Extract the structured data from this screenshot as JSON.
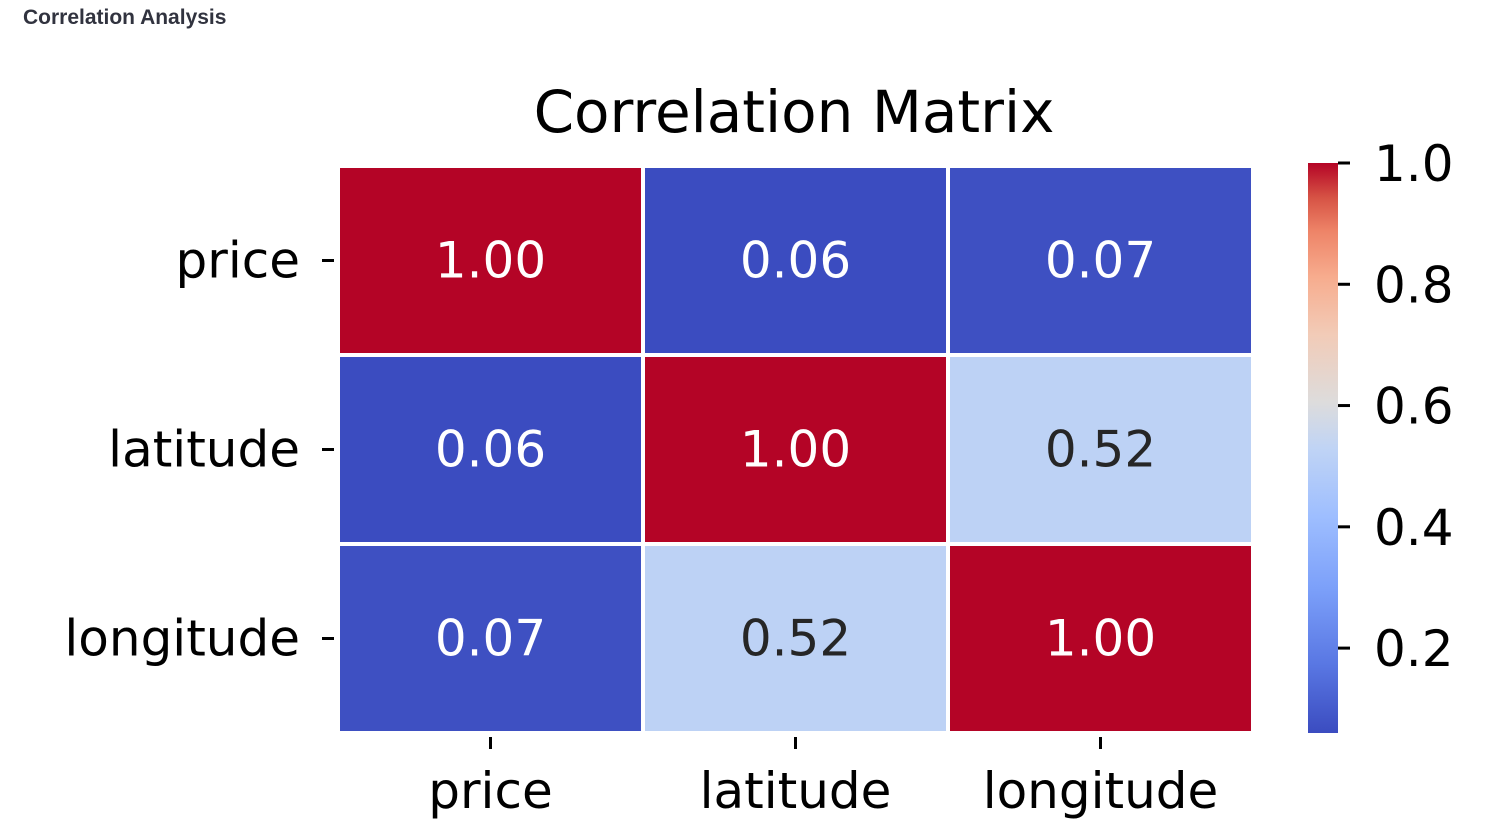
{
  "section": {
    "title": "Correlation Analysis"
  },
  "chart_data": {
    "type": "heatmap",
    "title": "Correlation Matrix",
    "xlabel": "",
    "ylabel": "",
    "rows": [
      "price",
      "latitude",
      "longitude"
    ],
    "columns": [
      "price",
      "latitude",
      "longitude"
    ],
    "values": [
      [
        1.0,
        0.06,
        0.07
      ],
      [
        0.06,
        1.0,
        0.52
      ],
      [
        0.07,
        0.52,
        1.0
      ]
    ],
    "value_format": "0.00",
    "colormap": "coolwarm",
    "colorbar": {
      "range": [
        0.06,
        1.0
      ],
      "ticks": [
        "0.2",
        "0.4",
        "0.6",
        "0.8",
        "1.0"
      ],
      "placement": "right"
    },
    "colors": {
      "high": "#b40426",
      "mid": "#dddcdc",
      "low": "#3b4cc0",
      "cell_border": "#ffffff",
      "label_light": "#ffffff",
      "label_dark": "#262626"
    }
  }
}
